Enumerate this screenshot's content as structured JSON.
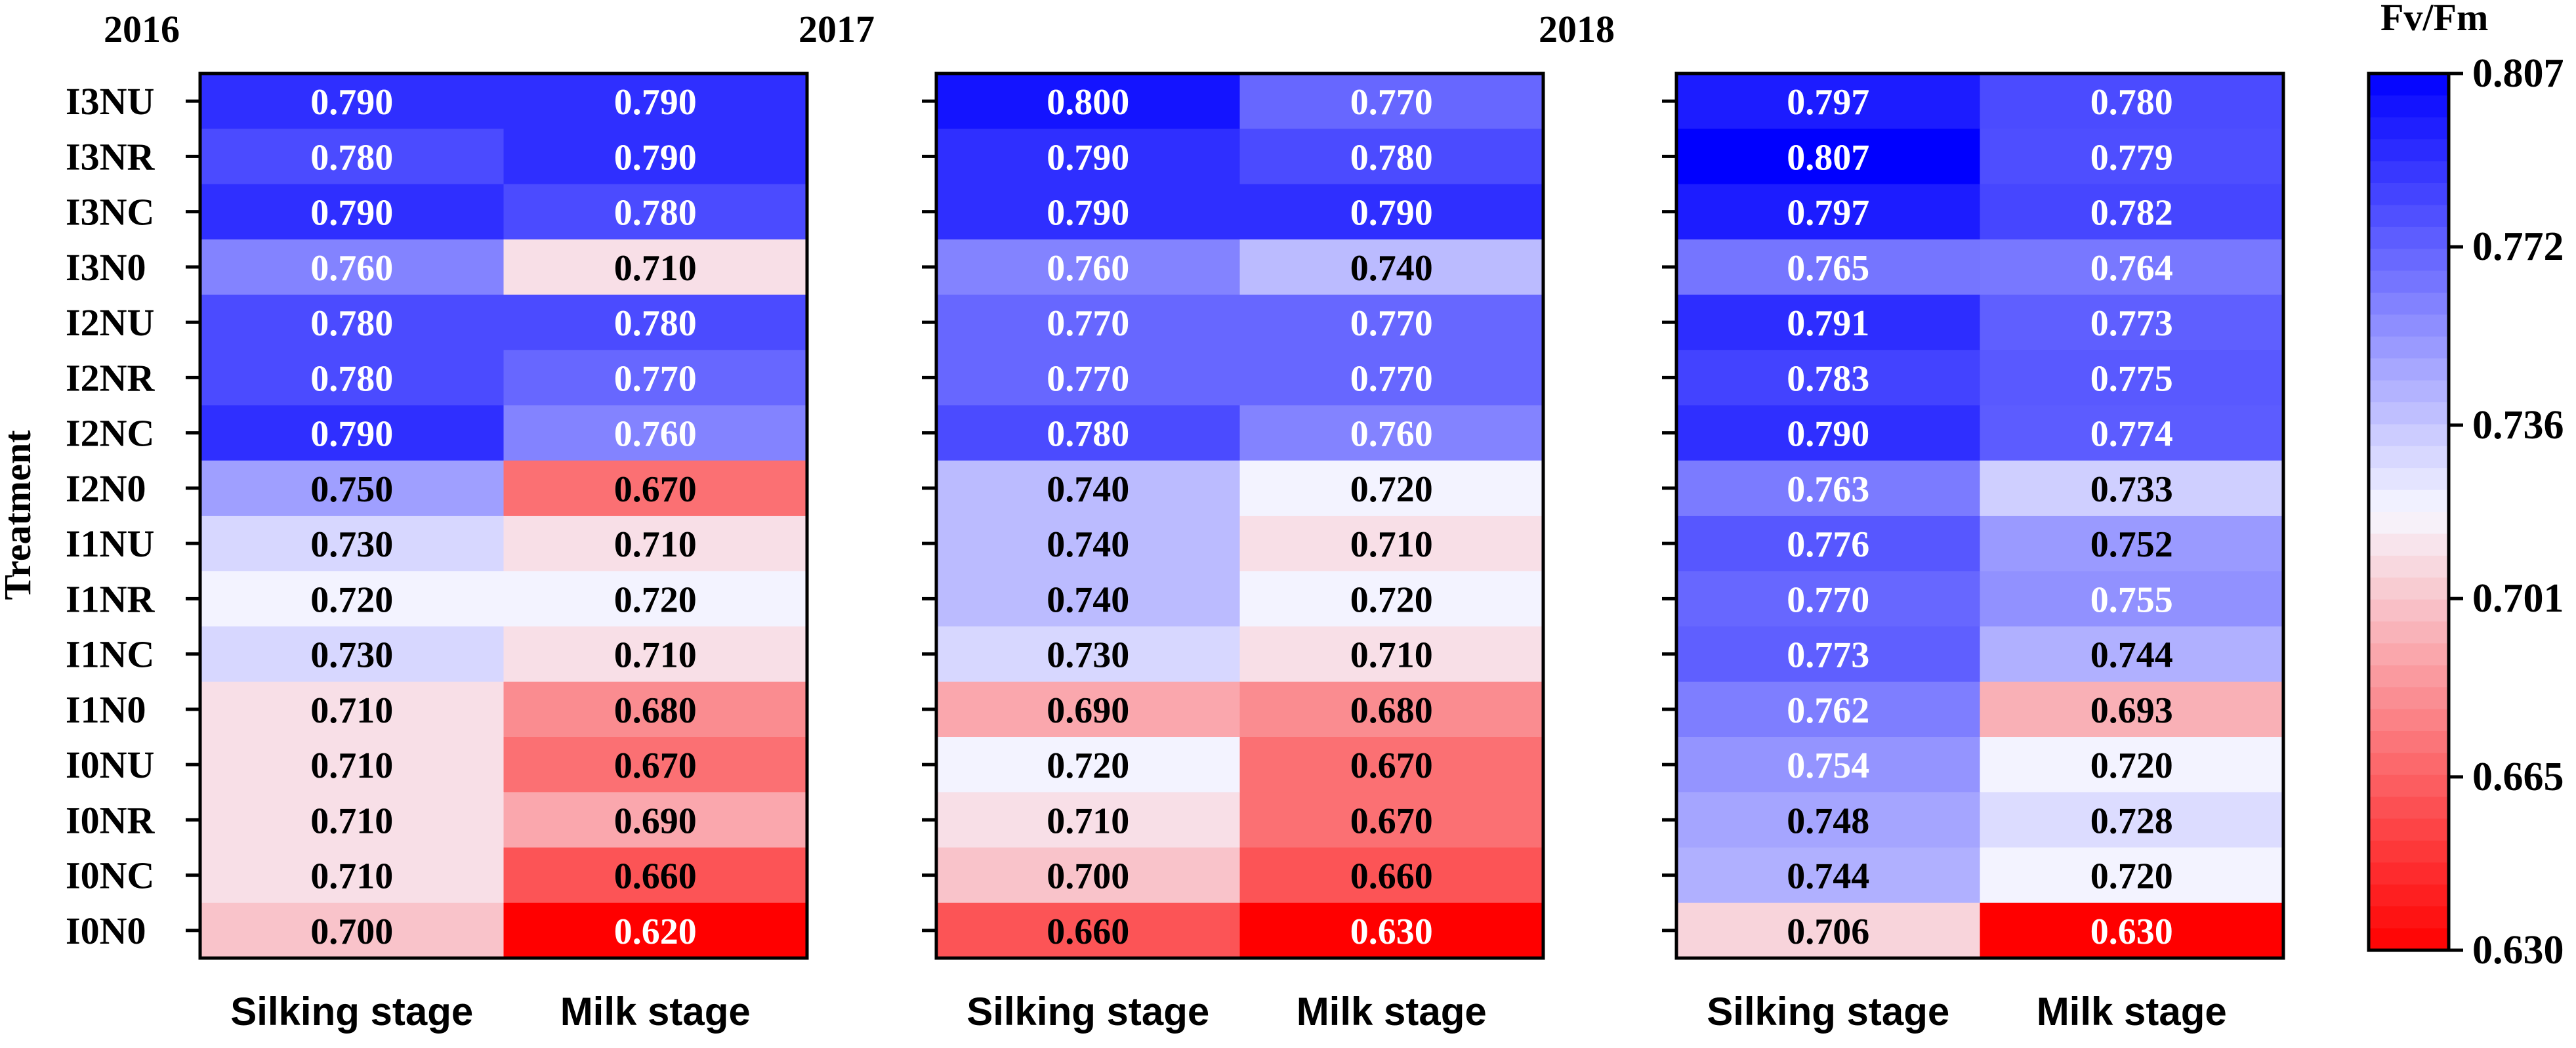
{
  "chart_data": {
    "type": "heatmap",
    "y_axis_label": "Treatment",
    "rows": [
      "I3NU",
      "I3NR",
      "I3NC",
      "I3N0",
      "I2NU",
      "I2NR",
      "I2NC",
      "I2N0",
      "I1NU",
      "I1NR",
      "I1NC",
      "I1N0",
      "I0NU",
      "I0NR",
      "I0NC",
      "I0N0"
    ],
    "columns": [
      "Silking stage",
      "Milk stage"
    ],
    "panels": [
      {
        "title": "2016",
        "values": [
          [
            "0.790",
            "0.790"
          ],
          [
            "0.780",
            "0.790"
          ],
          [
            "0.790",
            "0.780"
          ],
          [
            "0.760",
            "0.710"
          ],
          [
            "0.780",
            "0.780"
          ],
          [
            "0.780",
            "0.770"
          ],
          [
            "0.790",
            "0.760"
          ],
          [
            "0.750",
            "0.670"
          ],
          [
            "0.730",
            "0.710"
          ],
          [
            "0.720",
            "0.720"
          ],
          [
            "0.730",
            "0.710"
          ],
          [
            "0.710",
            "0.680"
          ],
          [
            "0.710",
            "0.670"
          ],
          [
            "0.710",
            "0.690"
          ],
          [
            "0.710",
            "0.660"
          ],
          [
            "0.700",
            "0.620"
          ]
        ]
      },
      {
        "title": "2017",
        "values": [
          [
            "0.800",
            "0.770"
          ],
          [
            "0.790",
            "0.780"
          ],
          [
            "0.790",
            "0.790"
          ],
          [
            "0.760",
            "0.740"
          ],
          [
            "0.770",
            "0.770"
          ],
          [
            "0.770",
            "0.770"
          ],
          [
            "0.780",
            "0.760"
          ],
          [
            "0.740",
            "0.720"
          ],
          [
            "0.740",
            "0.710"
          ],
          [
            "0.740",
            "0.720"
          ],
          [
            "0.730",
            "0.710"
          ],
          [
            "0.690",
            "0.680"
          ],
          [
            "0.720",
            "0.670"
          ],
          [
            "0.710",
            "0.670"
          ],
          [
            "0.700",
            "0.660"
          ],
          [
            "0.660",
            "0.630"
          ]
        ]
      },
      {
        "title": "2018",
        "values": [
          [
            "0.797",
            "0.780"
          ],
          [
            "0.807",
            "0.779"
          ],
          [
            "0.797",
            "0.782"
          ],
          [
            "0.765",
            "0.764"
          ],
          [
            "0.791",
            "0.773"
          ],
          [
            "0.783",
            "0.775"
          ],
          [
            "0.790",
            "0.774"
          ],
          [
            "0.763",
            "0.733"
          ],
          [
            "0.776",
            "0.752"
          ],
          [
            "0.770",
            "0.755"
          ],
          [
            "0.773",
            "0.744"
          ],
          [
            "0.762",
            "0.693"
          ],
          [
            "0.754",
            "0.720"
          ],
          [
            "0.748",
            "0.728"
          ],
          [
            "0.744",
            "0.720"
          ],
          [
            "0.706",
            "0.630"
          ]
        ]
      }
    ],
    "colorbar": {
      "title": "Fv/Fm",
      "min": 0.63,
      "max": 0.807,
      "ticks": [
        "0.807",
        "0.772",
        "0.736",
        "0.701",
        "0.665",
        "0.630"
      ],
      "colors": {
        "low": "#ff0000",
        "mid": "#f7f7ff",
        "high": "#0000ff"
      }
    }
  }
}
